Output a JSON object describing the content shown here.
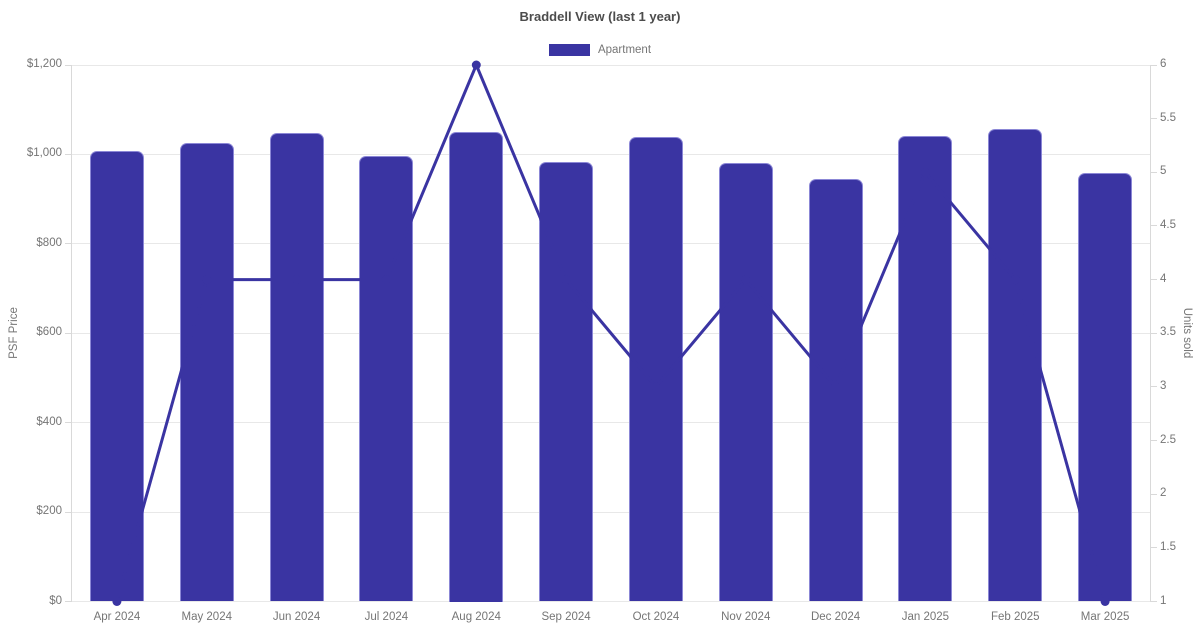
{
  "title": "Braddell View (last 1 year)",
  "legend": {
    "position": "top",
    "items": [
      {
        "label": "Apartment",
        "color": "#3a34a2"
      }
    ]
  },
  "colors": {
    "bar": "#3a34a2",
    "bar_border": "#8b87d6",
    "line": "#3a34a2",
    "grid": "#e8e8e8",
    "axis": "#d9d9d9",
    "text_muted": "#757575",
    "title_text": "#4c4c4c",
    "background": "#ffffff"
  },
  "chart_data": {
    "type": "bar",
    "title": "Braddell View (last 1 year)",
    "categories": [
      "Apr 2024",
      "May 2024",
      "Jun 2024",
      "Jul 2024",
      "Aug 2024",
      "Sep 2024",
      "Oct 2024",
      "Nov 2024",
      "Dec 2024",
      "Jan 2025",
      "Feb 2025",
      "Mar 2025"
    ],
    "series": [
      {
        "name": "Apartment",
        "type": "bar",
        "yaxis": "left",
        "values": [
          1008,
          1026,
          1048,
          996,
          1050,
          982,
          1040,
          980,
          945,
          1042,
          1057,
          958
        ]
      },
      {
        "name": "Units sold",
        "type": "line",
        "yaxis": "right",
        "values": [
          1,
          4,
          4,
          4,
          6,
          4,
          3,
          4,
          3,
          5,
          4,
          1
        ]
      }
    ],
    "left_axis": {
      "label": "PSF Price",
      "min": 0,
      "max": 1200,
      "step": 200,
      "tick_labels": [
        "$0",
        "$200",
        "$400",
        "$600",
        "$800",
        "$1,000",
        "$1,200"
      ]
    },
    "right_axis": {
      "label": "Units sold",
      "min": 1,
      "max": 6,
      "step": 0.5,
      "tick_labels": [
        "1",
        "1.5",
        "2",
        "2.5",
        "3",
        "3.5",
        "4",
        "4.5",
        "5",
        "5.5",
        "6"
      ]
    },
    "legend_position": "top",
    "grid": true
  }
}
